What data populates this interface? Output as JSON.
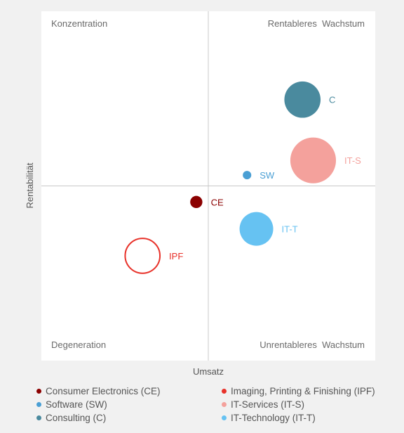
{
  "chart_data": {
    "type": "scatter",
    "subtype": "bubble",
    "xlabel": "Umsatz",
    "ylabel": "Rentabilität",
    "xlim": [
      0,
      100
    ],
    "ylim": [
      0,
      100
    ],
    "grid": false,
    "quadrant_divider": {
      "x": 50,
      "y": 50
    },
    "quadrant_labels": {
      "top_left": "Konzentration",
      "top_right": "Rentableres  Wachstum",
      "bottom_left": "Degeneration",
      "bottom_right": "Unrentableres  Wachstum"
    },
    "legend_placement": "bottom",
    "series": [
      {
        "name": "Consumer Electronics (CE)",
        "label": "CE",
        "x": 46.4,
        "y": 45.4,
        "size": 0.25,
        "color": "#8b0000",
        "fill": "filled"
      },
      {
        "name": "Imaging, Printing & Finishing (IPF)",
        "label": "IPF",
        "x": 30.3,
        "y": 30.0,
        "size": 2.2,
        "color": "#e8322a",
        "fill": "outline"
      },
      {
        "name": "Software (SW)",
        "label": "SW",
        "x": 61.6,
        "y": 53.1,
        "size": 0.12,
        "color": "#4a9fd4",
        "fill": "filled"
      },
      {
        "name": "IT-Services (IT-S)",
        "label": "IT-S",
        "x": 81.4,
        "y": 57.3,
        "size": 3.5,
        "color": "#f4a19c",
        "fill": "filled"
      },
      {
        "name": "Consulting (C)",
        "label": "C",
        "x": 78.2,
        "y": 74.7,
        "size": 2.2,
        "color": "#4a8a9e",
        "fill": "filled"
      },
      {
        "name": "IT-Technology (IT-T)",
        "label": "IT-T",
        "x": 64.4,
        "y": 37.7,
        "size": 1.9,
        "color": "#66c2f2",
        "fill": "filled"
      }
    ]
  }
}
